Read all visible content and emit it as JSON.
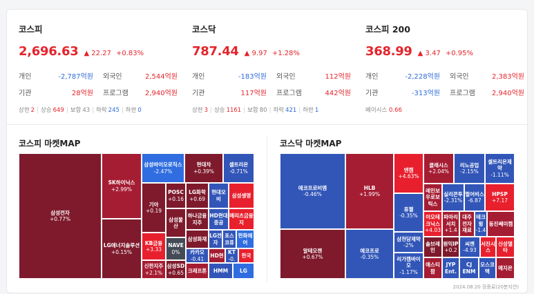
{
  "indices": [
    {
      "name": "코스피",
      "value": "2,696.63",
      "change": "▲ 22.27",
      "pct": "+0.83%",
      "inv": [
        {
          "l": "개인",
          "v": "-2,787억원",
          "c": "blue",
          "l2": "외국인",
          "v2": "2,544억원",
          "c2": "red"
        },
        {
          "l": "기관",
          "v": "28억원",
          "c": "red",
          "l2": "프로그램",
          "v2": "2,940억원",
          "c2": "red"
        }
      ],
      "breadth": [
        [
          "상한",
          "2",
          "red"
        ],
        [
          "상승",
          "649",
          "red"
        ],
        [
          "보합",
          "43",
          "gray"
        ],
        [
          "하락",
          "245",
          "blue"
        ],
        [
          "하한",
          "0",
          "blue"
        ]
      ]
    },
    {
      "name": "코스닥",
      "value": "787.44",
      "change": "▲ 9.97",
      "pct": "+1.28%",
      "inv": [
        {
          "l": "개인",
          "v": "-183억원",
          "c": "blue",
          "l2": "외국인",
          "v2": "112억원",
          "c2": "red"
        },
        {
          "l": "기관",
          "v": "117억원",
          "c": "red",
          "l2": "프로그램",
          "v2": "442억원",
          "c2": "red"
        }
      ],
      "breadth": [
        [
          "상한",
          "3",
          "red"
        ],
        [
          "상승",
          "1161",
          "red"
        ],
        [
          "보합",
          "80",
          "gray"
        ],
        [
          "하락",
          "421",
          "blue"
        ],
        [
          "하한",
          "1",
          "blue"
        ]
      ]
    },
    {
      "name": "코스피 200",
      "value": "368.99",
      "change": "▲ 3.47",
      "pct": "+0.95%",
      "inv": [
        {
          "l": "개인",
          "v": "-2,228억원",
          "c": "blue",
          "l2": "외국인",
          "v2": "2,383억원",
          "c2": "red"
        },
        {
          "l": "기관",
          "v": "-313억원",
          "c": "blue",
          "l2": "프로그램",
          "v2": "2,940억원",
          "c2": "red"
        }
      ],
      "basis": {
        "label": "베이시스",
        "value": "0.66"
      }
    }
  ],
  "kospi_map": {
    "title": "코스피 마켓MAP",
    "tiles": [
      {
        "n": "삼성전자",
        "p": "+0.77%",
        "c": "dr"
      },
      {
        "n": "SK하이닉스",
        "p": "+2.99%",
        "c": "mr"
      },
      {
        "n": "LG에너지솔루션",
        "p": "+0.15%",
        "c": "dr"
      },
      {
        "n": "삼성바이오로직스",
        "p": "-2.47%",
        "c": "mb"
      },
      {
        "n": "현대차",
        "p": "+0.39%",
        "c": "dr"
      },
      {
        "n": "셀트리온",
        "p": "-0.71%",
        "c": "db"
      },
      {
        "n": "기아",
        "p": "+0.19",
        "c": "dr"
      },
      {
        "n": "POSC",
        "p": "+0.16",
        "c": "dr"
      },
      {
        "n": "LG화학",
        "p": "+0.69",
        "c": "dr"
      },
      {
        "n": "현대모비",
        "p": "",
        "c": "db"
      },
      {
        "n": "삼성생명",
        "p": "",
        "c": "br"
      },
      {
        "n": "KB금융",
        "p": "+3.33",
        "c": "br"
      },
      {
        "n": "삼성물산",
        "p": "",
        "c": "dr"
      },
      {
        "n": "하나금융지주",
        "p": "",
        "c": "dr"
      },
      {
        "n": "HD현대중공",
        "p": "",
        "c": "db"
      },
      {
        "n": "메리츠금융지",
        "p": "",
        "c": "br"
      },
      {
        "n": "NAVE",
        "p": "0%",
        "c": "gr"
      },
      {
        "n": "삼성화재",
        "p": "",
        "c": "dr"
      },
      {
        "n": "LG전자",
        "p": "",
        "c": "db"
      },
      {
        "n": "포스코퓨",
        "p": "",
        "c": "db"
      },
      {
        "n": "한화에어",
        "p": "",
        "c": "mb"
      },
      {
        "n": "신한지주",
        "p": "+2.1%",
        "c": "mr"
      },
      {
        "n": "카카오",
        "p": "-0.41",
        "c": "db"
      },
      {
        "n": "HD현",
        "p": "",
        "c": "mr"
      },
      {
        "n": "KT",
        "p": "-0.",
        "c": "db"
      },
      {
        "n": "한국",
        "p": "",
        "c": "br"
      },
      {
        "n": "삼성SD",
        "p": "+0.65",
        "c": "dr"
      },
      {
        "n": "크래프톤",
        "p": "",
        "c": "mr"
      },
      {
        "n": "HMM",
        "p": "",
        "c": "db"
      },
      {
        "n": "LG",
        "p": "",
        "c": "mb"
      }
    ]
  },
  "kosdaq_map": {
    "title": "코스닥 마켓MAP",
    "tiles": [
      {
        "n": "에코프로비엠",
        "p": "-0.46%",
        "c": "db"
      },
      {
        "n": "알테오젠",
        "p": "+0.67%",
        "c": "dr"
      },
      {
        "n": "HLB",
        "p": "+1.99%",
        "c": "mr"
      },
      {
        "n": "에코프로",
        "p": "-0.35%",
        "c": "db"
      },
      {
        "n": "엔켐",
        "p": "+4.63%",
        "c": "br"
      },
      {
        "n": "휴젤",
        "p": "-0.35%",
        "c": "db"
      },
      {
        "n": "삼천당제약",
        "p": "-2%",
        "c": "db"
      },
      {
        "n": "리가켐바이오",
        "p": "-1.17%",
        "c": "db"
      },
      {
        "n": "클래시스",
        "p": "+2.04%",
        "c": "mr"
      },
      {
        "n": "리노공업",
        "p": "-2.15%",
        "c": "db"
      },
      {
        "n": "셀트리온제약",
        "p": "-1.11%",
        "c": "db"
      },
      {
        "n": "레인보우로보틱스",
        "p": "",
        "c": "mr"
      },
      {
        "n": "실리콘투",
        "p": "-2.31%",
        "c": "db"
      },
      {
        "n": "펄어비스",
        "p": "-6.87",
        "c": "db"
      },
      {
        "n": "HPSP",
        "p": "+7.17",
        "c": "br"
      },
      {
        "n": "이오테크닉스",
        "p": "+4.03",
        "c": "br"
      },
      {
        "n": "파마리서치",
        "p": "+1.4",
        "c": "mr"
      },
      {
        "n": "대주전자재료",
        "p": "",
        "c": "mr"
      },
      {
        "n": "테크윙",
        "p": "-1.4",
        "c": "db"
      },
      {
        "n": "동진쎄미켐",
        "p": "",
        "c": "mr"
      },
      {
        "n": "솔브레인",
        "p": "",
        "c": "dr"
      },
      {
        "n": "원익IP",
        "p": "+0.2",
        "c": "dr"
      },
      {
        "n": "씨젠",
        "p": "-4.93",
        "c": "db"
      },
      {
        "n": "서진시스",
        "p": "",
        "c": "br"
      },
      {
        "n": "신성델타",
        "p": "",
        "c": "br"
      },
      {
        "n": "에스티팜",
        "p": "",
        "c": "mr"
      },
      {
        "n": "JYP Ent.",
        "p": "",
        "c": "db"
      },
      {
        "n": "CJ ENM",
        "p": "",
        "c": "db"
      },
      {
        "n": "오스코텍",
        "p": "",
        "c": "db"
      },
      {
        "n": "메지온",
        "p": "",
        "c": "mr"
      }
    ]
  },
  "footer": "2024.08.20 장종료(20분지연)"
}
